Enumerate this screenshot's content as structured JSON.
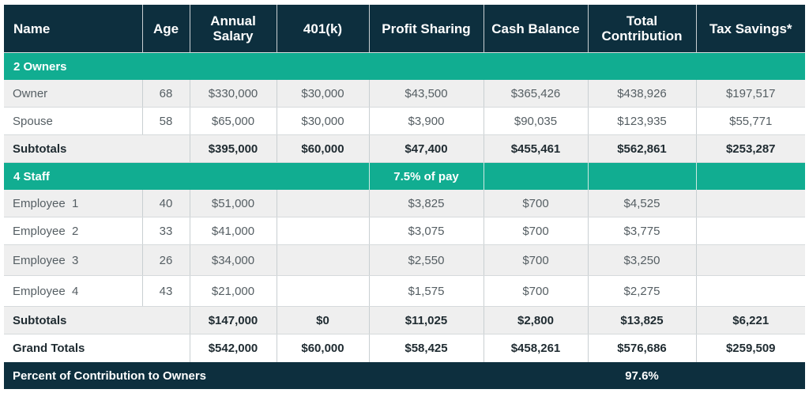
{
  "header": {
    "name": "Name",
    "age": "Age",
    "annual_salary": "Annual Salary",
    "k401": "401(k)",
    "profit_sharing": "Profit Sharing",
    "cash_balance": "Cash Balance",
    "total_contribution": "Total Contribution",
    "tax_savings": "Tax Savings*"
  },
  "owners_section": {
    "title": "2 Owners",
    "rows": [
      {
        "name": "Owner",
        "age": "68",
        "salary": "$330,000",
        "k401": "$30,000",
        "profit": "$43,500",
        "cash": "$365,426",
        "total": "$438,926",
        "tax": "$197,517"
      },
      {
        "name": "Spouse",
        "age": "58",
        "salary": "$65,000",
        "k401": "$30,000",
        "profit": "$3,900",
        "cash": "$90,035",
        "total": "$123,935",
        "tax": "$55,771"
      }
    ],
    "subtotal": {
      "label": "Subtotals",
      "salary": "$395,000",
      "k401": "$60,000",
      "profit": "$47,400",
      "cash": "$455,461",
      "total": "$562,861",
      "tax": "$253,287"
    }
  },
  "staff_section": {
    "title": "4 Staff",
    "profit_note": "7.5% of pay",
    "rows": [
      {
        "name": "Employee  1",
        "age": "40",
        "salary": "$51,000",
        "k401": "",
        "profit": "$3,825",
        "cash": "$700",
        "total": "$4,525",
        "tax": ""
      },
      {
        "name": "Employee  2",
        "age": "33",
        "salary": "$41,000",
        "k401": "",
        "profit": "$3,075",
        "cash": "$700",
        "total": "$3,775",
        "tax": ""
      },
      {
        "name": "Employee  3",
        "age": "26",
        "salary": "$34,000",
        "k401": "",
        "profit": "$2,550",
        "cash": "$700",
        "total": "$3,250",
        "tax": ""
      },
      {
        "name": "Employee  4",
        "age": "43",
        "salary": "$21,000",
        "k401": "",
        "profit": "$1,575",
        "cash": "$700",
        "total": "$2,275",
        "tax": ""
      }
    ],
    "subtotal": {
      "label": "Subtotals",
      "salary": "$147,000",
      "k401": "$0",
      "profit": "$11,025",
      "cash": "$2,800",
      "total": "$13,825",
      "tax": "$6,221"
    }
  },
  "grand_totals": {
    "label": "Grand Totals",
    "salary": "$542,000",
    "k401": "$60,000",
    "profit": "$58,425",
    "cash": "$458,261",
    "total": "$576,686",
    "tax": "$259,509"
  },
  "percent_to_owners": {
    "label": "Percent of Contribution to Owners",
    "value": "97.6%"
  },
  "colors": {
    "header_bg": "#0d2f3e",
    "section_bg": "#11ad91",
    "shaded_row": "#efefef"
  }
}
